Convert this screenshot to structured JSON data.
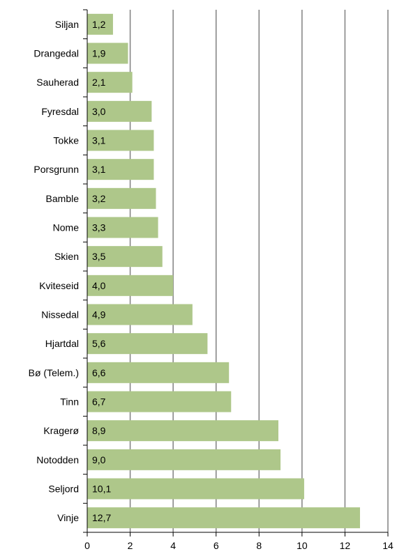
{
  "chart_data": {
    "type": "bar",
    "orientation": "horizontal",
    "categories": [
      "Siljan",
      "Drangedal",
      "Sauherad",
      "Fyresdal",
      "Tokke",
      "Porsgrunn",
      "Bamble",
      "Nome",
      "Skien",
      "Kviteseid",
      "Nissedal",
      "Hjartdal",
      "Bø (Telem.)",
      "Tinn",
      "Kragerø",
      "Notodden",
      "Seljord",
      "Vinje"
    ],
    "values": [
      1.2,
      1.9,
      2.1,
      3.0,
      3.1,
      3.1,
      3.2,
      3.3,
      3.5,
      4.0,
      4.9,
      5.6,
      6.6,
      6.7,
      8.9,
      9.0,
      10.1,
      12.7
    ],
    "value_labels": [
      "1,2",
      "1,9",
      "2,1",
      "3,0",
      "3,1",
      "3,1",
      "3,2",
      "3,3",
      "3,5",
      "4,0",
      "4,9",
      "5,6",
      "6,6",
      "6,7",
      "8,9",
      "9,0",
      "10,1",
      "12,7"
    ],
    "xticks": [
      "0",
      "2",
      "4",
      "6",
      "8",
      "10",
      "12",
      "14"
    ],
    "xlim": [
      0,
      14
    ],
    "grid": "vertical",
    "legend": "none",
    "title": "",
    "xlabel": "",
    "ylabel": "",
    "colors": {
      "bar": "#aec78a",
      "grid": "#808080",
      "axis": "#000000",
      "text": "#000000"
    }
  }
}
